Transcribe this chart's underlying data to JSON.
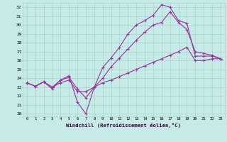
{
  "background_color": "#c5eae7",
  "grid_color": "#a8d5c8",
  "line_color": "#993399",
  "title": "Windchill (Refroidissement éolien,°C)",
  "xlim": [
    -0.5,
    23.5
  ],
  "ylim": [
    19.7,
    32.5
  ],
  "yticks": [
    20,
    21,
    22,
    23,
    24,
    25,
    26,
    27,
    28,
    29,
    30,
    31,
    32
  ],
  "xticks": [
    0,
    1,
    2,
    3,
    4,
    5,
    6,
    7,
    8,
    9,
    10,
    11,
    12,
    13,
    14,
    15,
    16,
    17,
    18,
    19,
    20,
    21,
    22,
    23
  ],
  "curve1_x": [
    0,
    1,
    2,
    3,
    4,
    5,
    6,
    7,
    8,
    9,
    10,
    11,
    12,
    13,
    14,
    15,
    16,
    17,
    18,
    19,
    20,
    21,
    22,
    23
  ],
  "curve1_y": [
    23.5,
    23.1,
    23.6,
    22.8,
    23.8,
    24.3,
    21.3,
    20.0,
    23.0,
    25.2,
    26.3,
    27.5,
    29.0,
    30.0,
    30.5,
    31.1,
    32.3,
    32.0,
    30.5,
    30.2,
    26.5,
    26.5,
    26.5,
    26.2
  ],
  "curve2_x": [
    0,
    1,
    2,
    3,
    4,
    5,
    6,
    7,
    8,
    9,
    10,
    11,
    12,
    13,
    14,
    15,
    16,
    17,
    18,
    19,
    20,
    21,
    22,
    23
  ],
  "curve2_y": [
    23.5,
    23.1,
    23.6,
    23.0,
    23.8,
    24.1,
    22.8,
    21.8,
    23.0,
    24.0,
    25.3,
    26.3,
    27.3,
    28.3,
    29.2,
    30.0,
    30.3,
    31.5,
    30.3,
    29.5,
    27.0,
    26.8,
    26.6,
    26.2
  ],
  "curve3_x": [
    0,
    1,
    2,
    3,
    4,
    5,
    6,
    7,
    8,
    9,
    10,
    11,
    12,
    13,
    14,
    15,
    16,
    17,
    18,
    19,
    20,
    21,
    22,
    23
  ],
  "curve3_y": [
    23.5,
    23.1,
    23.6,
    23.0,
    23.5,
    23.8,
    22.5,
    22.5,
    23.0,
    23.5,
    23.8,
    24.2,
    24.6,
    25.0,
    25.4,
    25.8,
    26.2,
    26.6,
    27.0,
    27.5,
    26.0,
    26.0,
    26.2,
    26.2
  ]
}
